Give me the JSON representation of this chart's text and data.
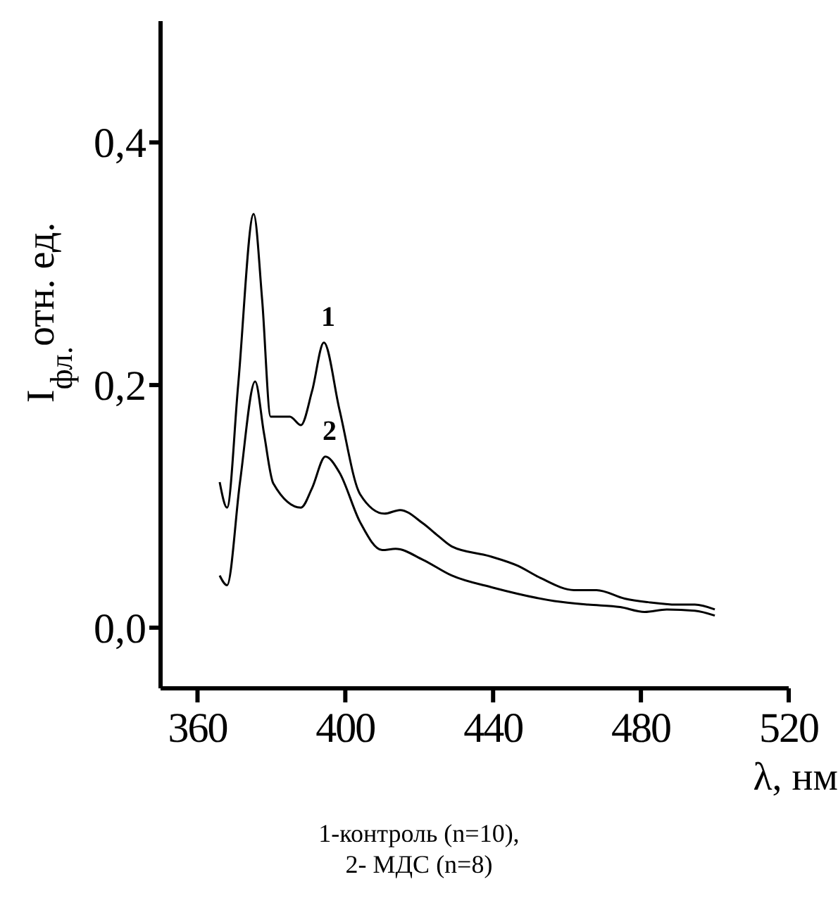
{
  "chart_data": {
    "type": "line",
    "xlabel": "λ, нм",
    "ylabel": "I$_{фл.}$отн. ед.",
    "xlim": [
      350,
      520
    ],
    "xticks": [
      360,
      400,
      440,
      480,
      520
    ],
    "ylim": [
      -0.05,
      0.5
    ],
    "yticks": [
      {
        "value": 0,
        "label": "0,0"
      },
      {
        "value": 0.2,
        "label": "0,2"
      },
      {
        "value": 0.4,
        "label": "0,4"
      }
    ],
    "grid": false,
    "marker": "none",
    "line_style": "solid",
    "series": [
      {
        "name": "1",
        "color": "#000000",
        "x": [
          366,
          368,
          371,
          375.2,
          377.5,
          379.8,
          385,
          388,
          391,
          394.2,
          398.4,
          404,
          410.6,
          414.8,
          421,
          425,
          428.8,
          439,
          446.7,
          452.8,
          461.9,
          468,
          475.6,
          482,
          489.7,
          494.6,
          500
        ],
        "values": [
          0.12,
          0.099,
          0.2,
          0.341,
          0.27,
          0.174,
          0.174,
          0.167,
          0.195,
          0.235,
          0.18,
          0.11,
          0.094,
          0.097,
          0.086,
          0.076,
          0.067,
          0.059,
          0.051,
          0.041,
          0.031,
          0.031,
          0.024,
          0.021,
          0.019,
          0.019,
          0.015
        ]
      },
      {
        "name": "2",
        "color": "#000000",
        "x": [
          366,
          368,
          371.5,
          375.6,
          378,
          380.5,
          388,
          391,
          394.6,
          398.4,
          404,
          410,
          413.6,
          421,
          428.8,
          440,
          456.6,
          465.7,
          474.4,
          481,
          487,
          494.6,
          500
        ],
        "values": [
          0.043,
          0.035,
          0.12,
          0.203,
          0.16,
          0.119,
          0.099,
          0.115,
          0.141,
          0.128,
          0.087,
          0.064,
          0.065,
          0.056,
          0.043,
          0.033,
          0.022,
          0.019,
          0.017,
          0.013,
          0.015,
          0.014,
          0.01
        ]
      }
    ],
    "annotations": [
      "1-контроль (n=10),",
      "2- МДС (n=8)"
    ]
  }
}
